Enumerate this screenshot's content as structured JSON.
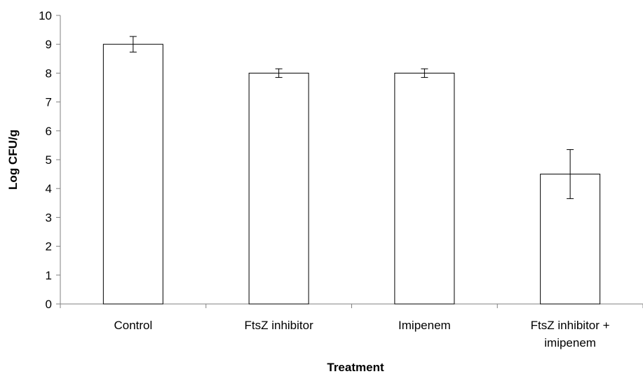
{
  "chart_data": {
    "type": "bar",
    "title": "",
    "xlabel": "Treatment",
    "ylabel": "Log CFU/g",
    "ylim": [
      0,
      10
    ],
    "yticks": [
      0,
      1,
      2,
      3,
      4,
      5,
      6,
      7,
      8,
      9,
      10
    ],
    "categories": [
      [
        "Control"
      ],
      [
        "FtsZ inhibitor"
      ],
      [
        "Imipenem"
      ],
      [
        "FtsZ inhibitor +",
        "imipenem"
      ]
    ],
    "values": [
      9.0,
      8.0,
      8.0,
      4.5
    ],
    "error": [
      0.27,
      0.15,
      0.15,
      0.85
    ],
    "grid": false,
    "legend": "none",
    "bar_fill": "#ffffff",
    "bar_stroke": "#000000",
    "axis_color": "#808080"
  }
}
